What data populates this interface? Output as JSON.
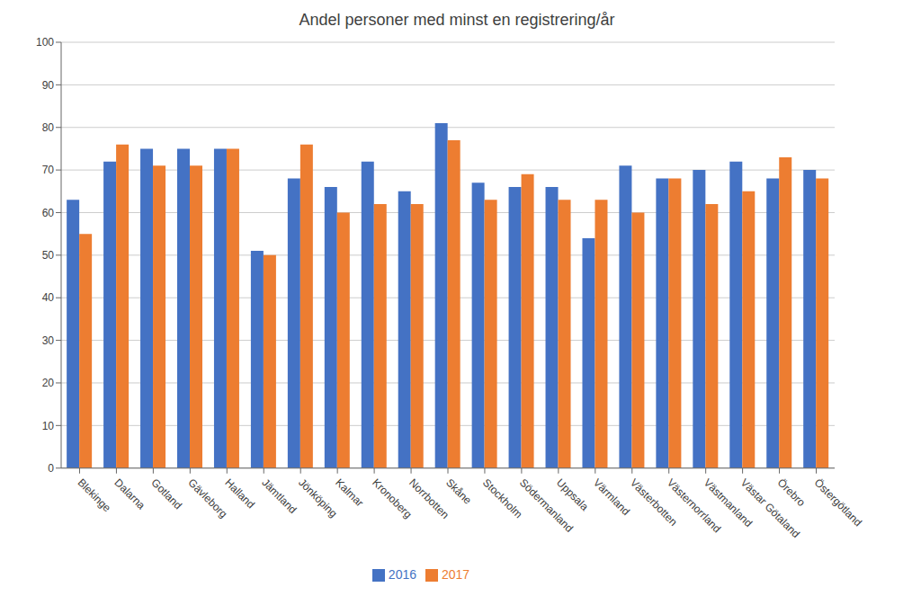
{
  "chart_data": {
    "type": "bar",
    "title": "Andel personer med minst en registrering/år",
    "categories": [
      "Blekinge",
      "Dalarna",
      "Gotland",
      "Gävleborg",
      "Halland",
      "Jämtland",
      "Jönköping",
      "Kalmar",
      "Kronoberg",
      "Norrbotten",
      "Skåne",
      "Stockholm",
      "Södermanland",
      "Uppsala",
      "Värmland",
      "Västerbotten",
      "Västernorrland",
      "Västmanland",
      "Västar Götaland",
      "Örebro",
      "Östergötland"
    ],
    "series": [
      {
        "name": "2016",
        "color": "#4472C4",
        "values": [
          63,
          72,
          75,
          75,
          75,
          51,
          68,
          66,
          72,
          65,
          81,
          67,
          66,
          66,
          54,
          71,
          68,
          70,
          72,
          68,
          70
        ]
      },
      {
        "name": "2017",
        "color": "#ED7D31",
        "values": [
          55,
          76,
          71,
          71,
          75,
          50,
          76,
          60,
          62,
          62,
          77,
          63,
          69,
          63,
          63,
          60,
          68,
          62,
          65,
          73,
          68
        ]
      }
    ],
    "ylim": [
      0,
      100
    ],
    "yticks": [
      0,
      10,
      20,
      30,
      40,
      50,
      60,
      70,
      80,
      90,
      100
    ],
    "grid": true,
    "legend": "bottom"
  }
}
